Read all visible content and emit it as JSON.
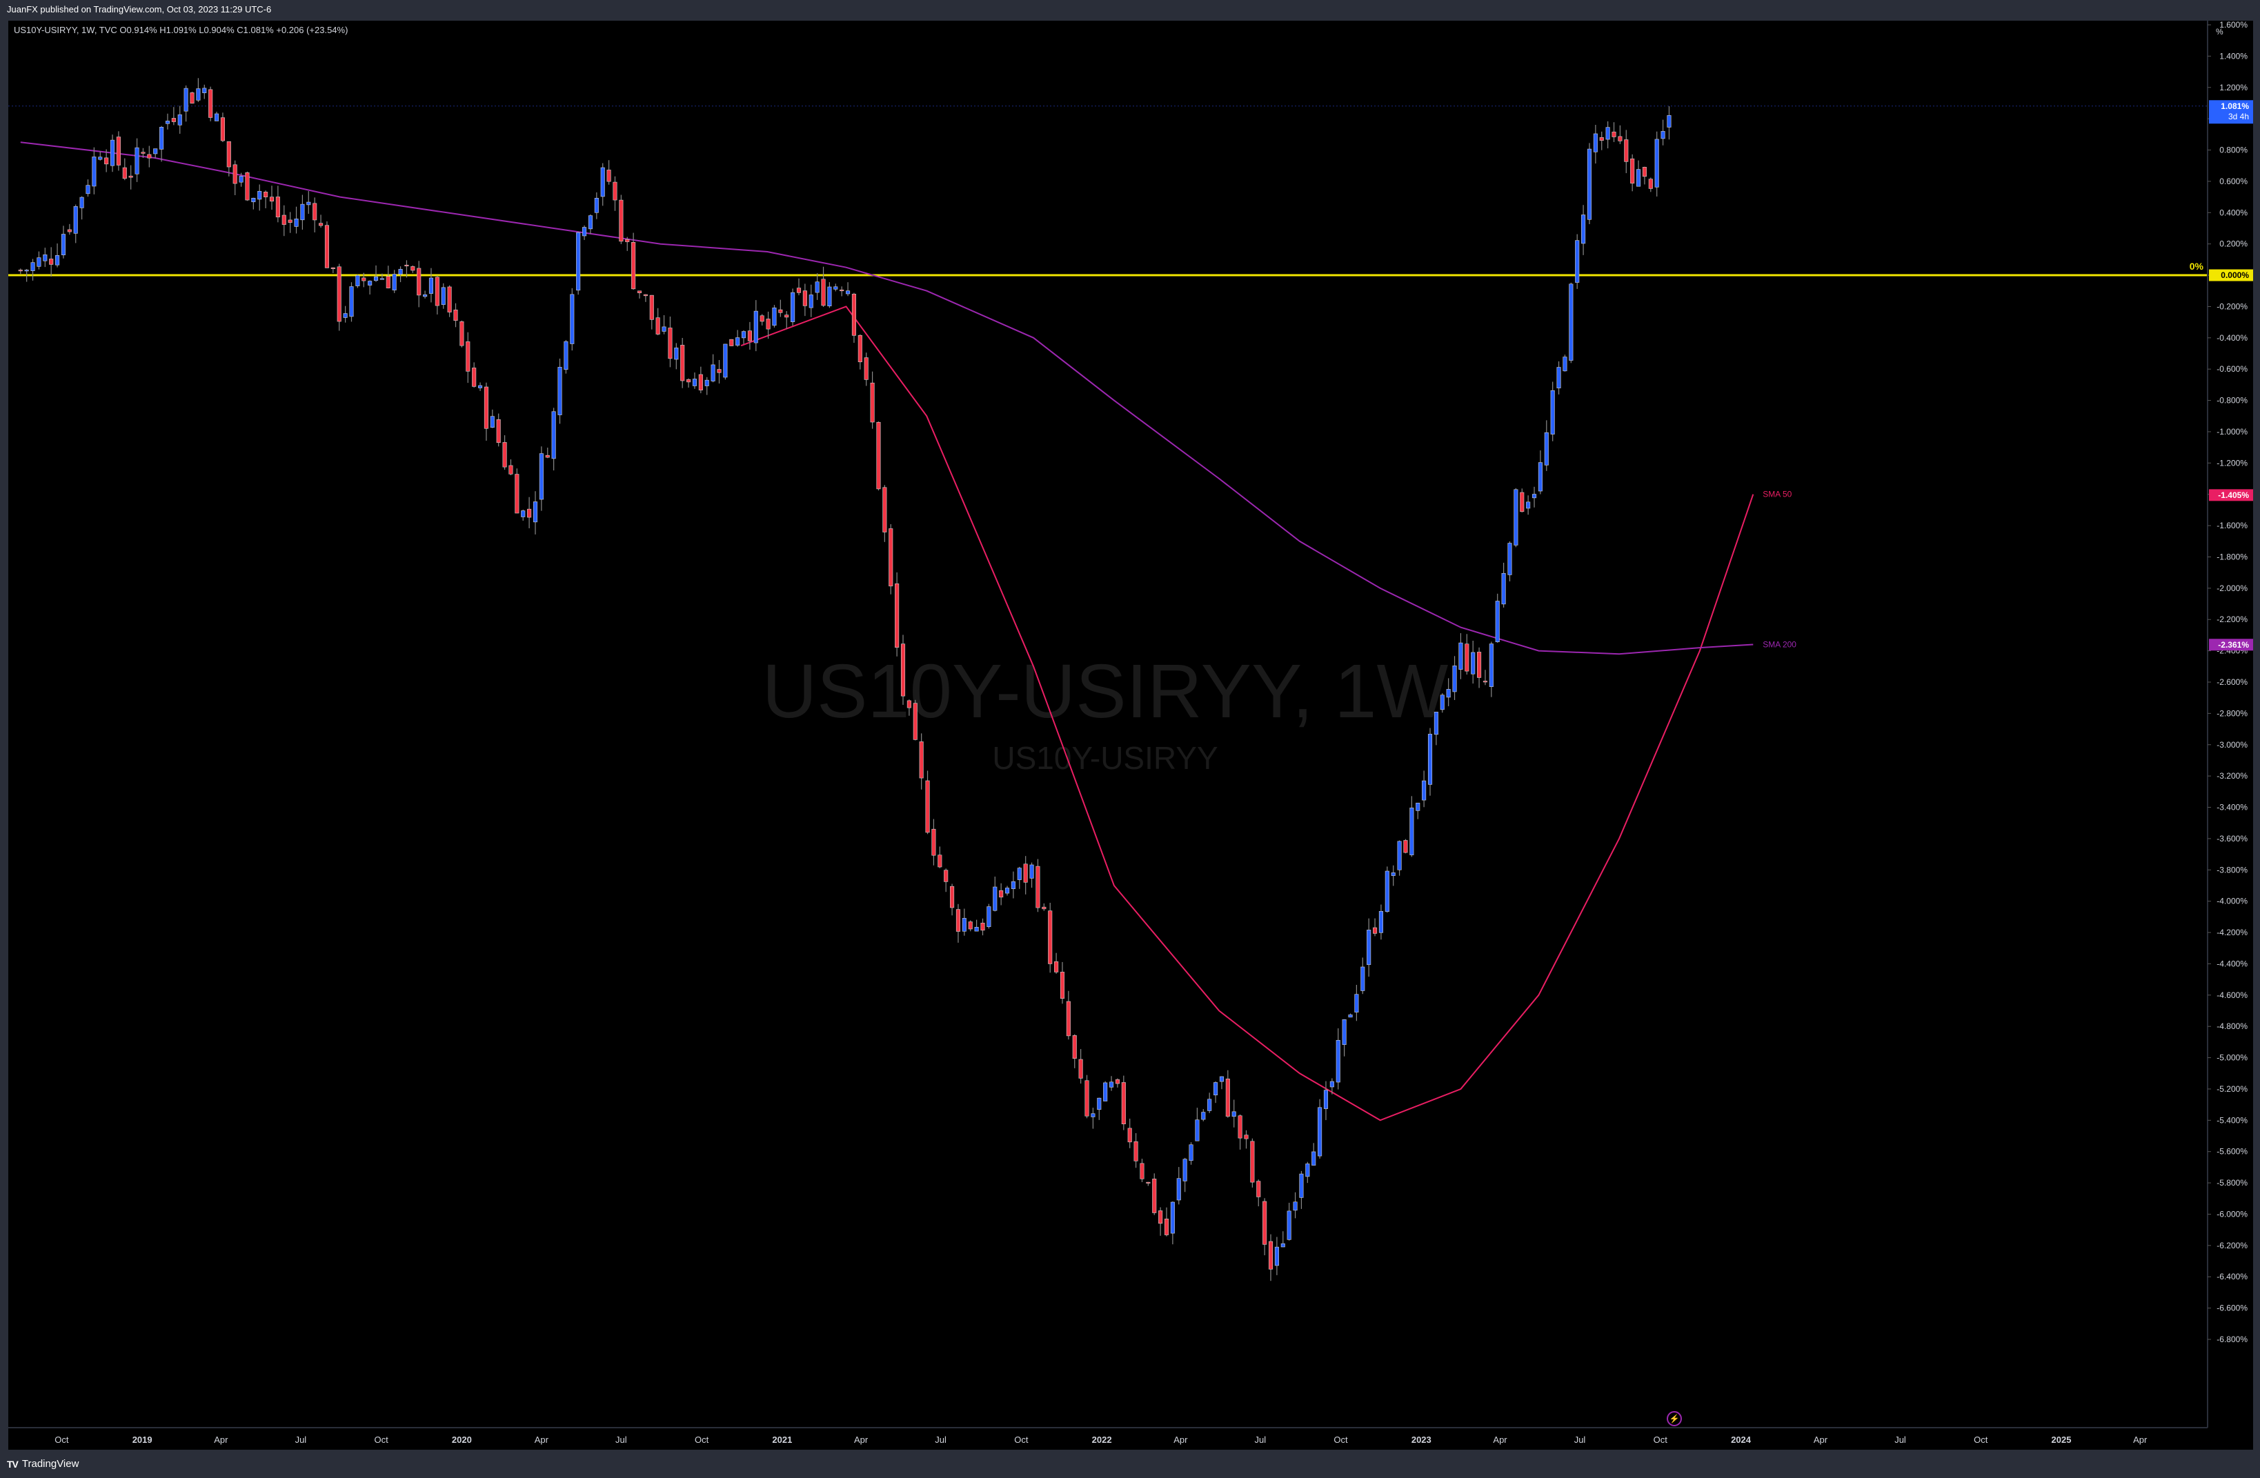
{
  "header": {
    "publish_line": "JuanFX published on TradingView.com, Oct 03, 2023 11:29 UTC-6",
    "ohlc_line": "US10Y-USIRYY, 1W, TVC O0.914% H1.091% L0.904% C1.081% +0.206 (+23.54%)"
  },
  "footer": {
    "brand_label": "TradingView",
    "brand_icon": "tradingview-logo-icon"
  },
  "watermark": {
    "symbol": "US10Y-USIRYY, 1W",
    "subtitle": "US10Y-USIRYY"
  },
  "price_axis": {
    "unit_label": "%"
  },
  "last_price": {
    "value": "1.081%",
    "countdown": "3d 4h",
    "color": "#2962ff"
  },
  "zero_line": {
    "label": "0%",
    "value_tag": "0.000%",
    "color": "#f2e600"
  },
  "indicators": [
    {
      "name": "SMA 50",
      "value_tag": "-1.405%",
      "color": "#e91e63"
    },
    {
      "name": "SMA 200",
      "value_tag": "-2.361%",
      "color": "#9c27b0"
    }
  ],
  "colors": {
    "up": "#2962ff",
    "down": "#f23645",
    "background": "#000000",
    "axis_text": "#d1d4dc"
  },
  "chart_data": {
    "type": "candlestick",
    "title": "US10Y-USIRYY, 1W",
    "ylabel": "%",
    "ylim": [
      -7.0,
      1.6
    ],
    "y_ticks": [
      "1.600%",
      "1.400%",
      "1.200%",
      "1.000%",
      "0.800%",
      "0.600%",
      "0.400%",
      "0.200%",
      "0.000%",
      "-0.200%",
      "-0.400%",
      "-0.600%",
      "-0.800%",
      "-1.000%",
      "-1.200%",
      "-1.400%",
      "-1.600%",
      "-1.800%",
      "-2.000%",
      "-2.200%",
      "-2.400%",
      "-2.600%",
      "-2.800%",
      "-3.000%",
      "-3.200%",
      "-3.400%",
      "-3.600%",
      "-3.800%",
      "-4.000%",
      "-4.200%",
      "-4.400%",
      "-4.600%",
      "-4.800%",
      "-5.000%",
      "-5.200%",
      "-5.400%",
      "-5.600%",
      "-5.800%",
      "-6.000%",
      "-6.200%",
      "-6.400%",
      "-6.600%",
      "-6.800%"
    ],
    "x_ticks": [
      "Oct",
      "2019",
      "Apr",
      "Jul",
      "Oct",
      "2020",
      "Apr",
      "Jul",
      "Oct",
      "2021",
      "Apr",
      "Jul",
      "Oct",
      "2022",
      "Apr",
      "Jul",
      "Oct",
      "2023",
      "Apr",
      "Jul",
      "Oct",
      "2024",
      "Apr",
      "Jul",
      "Oct",
      "2025",
      "Apr"
    ],
    "close_path": [
      [
        "2018-08",
        0.03
      ],
      [
        "2018-09",
        0.1
      ],
      [
        "2018-10",
        0.4
      ],
      [
        "2018-11",
        0.85
      ],
      [
        "2018-12",
        0.65
      ],
      [
        "2019-01",
        0.85
      ],
      [
        "2019-02",
        1.15
      ],
      [
        "2019-03",
        1.2
      ],
      [
        "2019-04",
        0.6
      ],
      [
        "2019-05",
        0.55
      ],
      [
        "2019-06",
        0.3
      ],
      [
        "2019-07",
        0.5
      ],
      [
        "2019-08",
        -0.25
      ],
      [
        "2019-09",
        0.0
      ],
      [
        "2019-10",
        0.0
      ],
      [
        "2019-11",
        -0.05
      ],
      [
        "2019-12",
        -0.2
      ],
      [
        "2020-01",
        -0.7
      ],
      [
        "2020-02",
        -1.1
      ],
      [
        "2020-03",
        -1.6
      ],
      [
        "2020-04",
        -0.9
      ],
      [
        "2020-05",
        0.35
      ],
      [
        "2020-06",
        0.65
      ],
      [
        "2020-07",
        0.0
      ],
      [
        "2020-08",
        -0.4
      ],
      [
        "2020-09",
        -0.65
      ],
      [
        "2020-10",
        -0.6
      ],
      [
        "2020-11",
        -0.3
      ],
      [
        "2020-12",
        -0.35
      ],
      [
        "2021-01",
        -0.2
      ],
      [
        "2021-02",
        -0.1
      ],
      [
        "2021-03",
        0.0
      ],
      [
        "2021-04",
        -1.0
      ],
      [
        "2021-05",
        -2.55
      ],
      [
        "2021-06",
        -3.45
      ],
      [
        "2021-07",
        -4.1
      ],
      [
        "2021-08",
        -4.15
      ],
      [
        "2021-09",
        -3.9
      ],
      [
        "2021-10",
        -3.8
      ],
      [
        "2021-11",
        -4.65
      ],
      [
        "2021-12",
        -5.4
      ],
      [
        "2022-01",
        -5.2
      ],
      [
        "2022-02",
        -5.7
      ],
      [
        "2022-03",
        -6.15
      ],
      [
        "2022-04",
        -5.45
      ],
      [
        "2022-05",
        -5.15
      ],
      [
        "2022-06",
        -5.6
      ],
      [
        "2022-07",
        -6.4
      ],
      [
        "2022-08",
        -5.7
      ],
      [
        "2022-09",
        -5.3
      ],
      [
        "2022-10",
        -4.6
      ],
      [
        "2022-11",
        -4.0
      ],
      [
        "2022-12",
        -3.6
      ],
      [
        "2023-01",
        -2.95
      ],
      [
        "2023-02",
        -2.4
      ],
      [
        "2023-03",
        -2.6
      ],
      [
        "2023-04",
        -1.5
      ],
      [
        "2023-05",
        -1.3
      ],
      [
        "2023-06",
        -0.4
      ],
      [
        "2023-07",
        0.9
      ],
      [
        "2023-08",
        0.8
      ],
      [
        "2023-09",
        0.55
      ],
      [
        "2023-10",
        1.08
      ]
    ],
    "sma50_path": [
      [
        "2020-11",
        -0.45
      ],
      [
        "2021-03",
        -0.2
      ],
      [
        "2021-06",
        -0.9
      ],
      [
        "2021-10",
        -2.5
      ],
      [
        "2022-01",
        -3.9
      ],
      [
        "2022-05",
        -4.7
      ],
      [
        "2022-08",
        -5.1
      ],
      [
        "2022-11",
        -5.4
      ],
      [
        "2023-02",
        -5.2
      ],
      [
        "2023-05",
        -4.6
      ],
      [
        "2023-08",
        -3.6
      ],
      [
        "2023-11",
        -2.4
      ],
      [
        "2024-01",
        -1.4
      ]
    ],
    "sma200_path": [
      [
        "2018-08",
        0.85
      ],
      [
        "2019-01",
        0.75
      ],
      [
        "2019-04",
        0.65
      ],
      [
        "2019-08",
        0.5
      ],
      [
        "2019-12",
        0.4
      ],
      [
        "2020-04",
        0.3
      ],
      [
        "2020-08",
        0.2
      ],
      [
        "2020-12",
        0.15
      ],
      [
        "2021-03",
        0.05
      ],
      [
        "2021-06",
        -0.1
      ],
      [
        "2021-10",
        -0.4
      ],
      [
        "2022-01",
        -0.8
      ],
      [
        "2022-05",
        -1.3
      ],
      [
        "2022-08",
        -1.7
      ],
      [
        "2022-11",
        -2.0
      ],
      [
        "2023-02",
        -2.25
      ],
      [
        "2023-05",
        -2.4
      ],
      [
        "2023-08",
        -2.42
      ],
      [
        "2023-11",
        -2.38
      ],
      [
        "2024-01",
        -2.36
      ]
    ]
  }
}
